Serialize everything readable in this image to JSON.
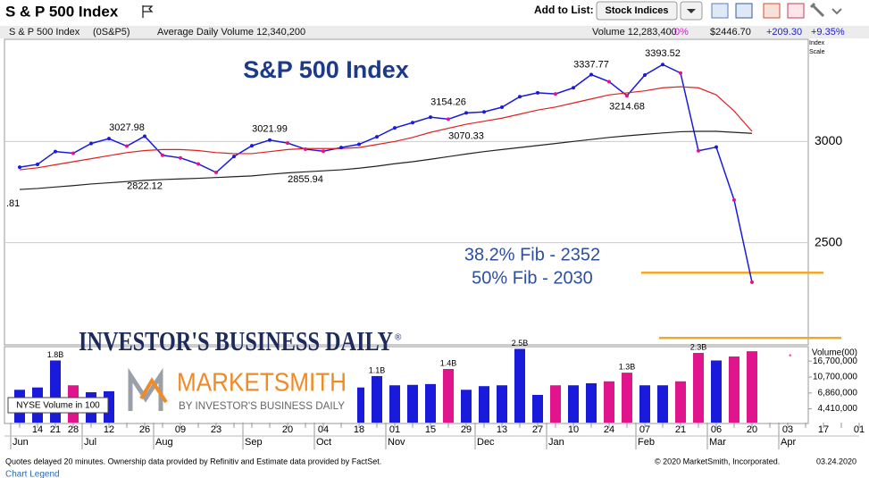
{
  "header": {
    "title": "S & P 500 Index",
    "add_to_list": "Add to List:",
    "list_button": "Stock Indices"
  },
  "info_bar": {
    "name": "S & P 500 Index",
    "symbol": "(0S&P5)",
    "avg_volume": "Average Daily Volume 12,340,200",
    "volume": "Volume 12,283,400",
    "volume_change": "0%",
    "price": "$2446.70",
    "change": "+209.30",
    "change_pct": "+9.35%",
    "scale_label": "Index Scale"
  },
  "logos": {
    "ibd": "INVESTOR'S BUSINESS DAILY",
    "ibd_mark": "®",
    "marketsmith": "MARKETSMITH",
    "marketsmith_sub": "BY INVESTOR'S BUSINESS DAILY"
  },
  "chart_data": [
    {
      "type": "line",
      "title": "S&P 500 Index",
      "categories": [
        null,
        "14",
        "21",
        "28",
        null,
        "12",
        null,
        "26",
        null,
        "09",
        null,
        "23",
        null,
        null,
        null,
        "20",
        null,
        "04",
        null,
        "18",
        null,
        "01",
        null,
        "15",
        null,
        "29",
        null,
        "13",
        null,
        "27",
        null,
        "10",
        null,
        "24",
        null,
        "07",
        null,
        "21",
        null,
        "06",
        null,
        "20",
        null,
        "03",
        null,
        "17",
        null,
        "01"
      ],
      "month_labels": [
        "Jun",
        null,
        null,
        null,
        "Jul",
        null,
        null,
        null,
        "Aug",
        null,
        null,
        null,
        null,
        "Sep",
        null,
        null,
        null,
        "Oct",
        null,
        null,
        null,
        "Nov",
        null,
        null,
        null,
        null,
        "Dec",
        null,
        null,
        null,
        "Jan",
        null,
        null,
        null,
        null,
        "Feb",
        null,
        null,
        null,
        "Mar",
        null,
        null,
        null,
        "Apr",
        null,
        null,
        null,
        null
      ],
      "ylim": [
        2000,
        3500
      ],
      "yticks": [
        2500,
        3000
      ],
      "grid": true,
      "up_color": "#1a1adb",
      "down_color": "#e0148c",
      "series": [
        {
          "color": "#1a1adb",
          "values": [
            2873,
            2887,
            2950,
            2942,
            2990,
            3014,
            2977,
            3026,
            2932,
            2919,
            2889,
            2847,
            2926,
            2979,
            3007,
            2992,
            2962,
            2952,
            2970,
            2986,
            3023,
            3067,
            3093,
            3120,
            3110,
            3141,
            3146,
            3169,
            3221,
            3240,
            3235,
            3265,
            3330,
            3295,
            3226,
            3328,
            3380,
            3338,
            2954,
            2972,
            2711,
            2305,
            null,
            null,
            null,
            null,
            null,
            null
          ]
        },
        {
          "color": "#e02020",
          "values": [
            2860,
            2870,
            2885,
            2900,
            2915,
            2930,
            2945,
            2955,
            2960,
            2960,
            2955,
            2945,
            2940,
            2940,
            2950,
            2960,
            2965,
            2965,
            2965,
            2970,
            2985,
            3000,
            3020,
            3045,
            3065,
            3085,
            3100,
            3115,
            3135,
            3155,
            3170,
            3190,
            3210,
            3230,
            3240,
            3250,
            3265,
            3270,
            3265,
            3230,
            3150,
            3050,
            null,
            null,
            null,
            null,
            null,
            null
          ]
        },
        {
          "color": "#222222",
          "values": [
            2763,
            2768,
            2775,
            2782,
            2790,
            2796,
            2802,
            2808,
            2812,
            2815,
            2818,
            2822,
            2826,
            2830,
            2838,
            2845,
            2850,
            2855,
            2860,
            2868,
            2878,
            2890,
            2900,
            2912,
            2925,
            2938,
            2950,
            2960,
            2970,
            2980,
            2990,
            3000,
            3010,
            3020,
            3028,
            3035,
            3042,
            3048,
            3050,
            3050,
            3045,
            3040,
            null,
            null,
            null,
            null,
            null,
            null
          ]
        }
      ],
      "annotations": [
        {
          "value": 3027.98,
          "index": 6,
          "position": "above"
        },
        {
          "value": 2822.12,
          "index": 7,
          "position": "below"
        },
        {
          "value": 3021.99,
          "index": 14,
          "position": "above"
        },
        {
          "value": 2855.94,
          "index": 16,
          "position": "below"
        },
        {
          "value": 3154.26,
          "index": 24,
          "position": "above"
        },
        {
          "value": 3070.33,
          "index": 25,
          "position": "below"
        },
        {
          "value": 3337.77,
          "index": 32,
          "position": "above"
        },
        {
          "value": 3214.68,
          "index": 34,
          "position": "below"
        },
        {
          "value": 3393.52,
          "index": 36,
          "position": "above"
        }
      ],
      "edge_label": ".81",
      "fib_notes": [
        "38.2% Fib -  2352",
        "50% Fib -  2030"
      ],
      "hlines": [
        {
          "value": 2352,
          "color": "#f5a623"
        },
        {
          "value": 2030,
          "color": "#f5a623"
        }
      ]
    },
    {
      "type": "bar",
      "y_label": "Volume(00)",
      "legend": "NYSE Volume in 100",
      "log": true,
      "ylim": [
        3000000,
        25000000
      ],
      "yticks": [
        {
          "value": 16700000,
          "label": "16,700,000"
        },
        {
          "value": 10700000,
          "label": "10,700,000"
        },
        {
          "value": 6860000,
          "label": "6,860,000"
        },
        {
          "value": 4410000,
          "label": "4,410,000"
        }
      ],
      "values": [
        7500000,
        8000000,
        17000000,
        8500000,
        7000000,
        7200000,
        7500000,
        7000000,
        8000000,
        9000000,
        9500000,
        8500000,
        8500000,
        7500000,
        8000000,
        8500000,
        8000000,
        7800000,
        8500000,
        8000000,
        11000000,
        8500000,
        8600000,
        8800000,
        13400000,
        7500000,
        8300000,
        8500000,
        23500000,
        6500000,
        8500000,
        8500000,
        9000000,
        9500000,
        12100000,
        8500000,
        8500000,
        9500000,
        21000000,
        17000000,
        19000000,
        22000000,
        null,
        null,
        null,
        null,
        null,
        null
      ],
      "annotations": [
        {
          "label": "1.8B",
          "index": 2
        },
        {
          "label": "1.1B",
          "index": 20
        },
        {
          "label": "1.4B",
          "index": 24
        },
        {
          "label": "2.5B",
          "index": 28
        },
        {
          "label": "1.3B",
          "index": 34
        },
        {
          "label": "2.3B",
          "index": 38
        }
      ]
    }
  ],
  "footer": {
    "note": "Quotes delayed 20 minutes. Ownership data provided by Refinitiv and Estimate data provided by FactSet.",
    "copyright": "© 2020 MarketSmith, Incorporated.",
    "date": "03.24.2020",
    "legend_link": "Chart Legend"
  }
}
